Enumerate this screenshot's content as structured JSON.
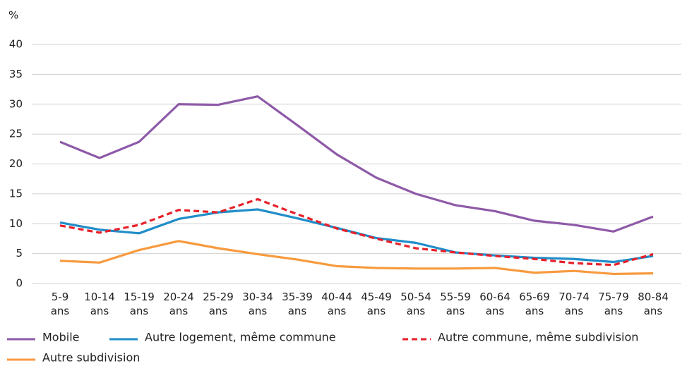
{
  "chart_data": {
    "type": "line",
    "y_label": "%",
    "categories": [
      "5-9 ans",
      "10-14 ans",
      "15-19 ans",
      "20-24 ans",
      "25-29 ans",
      "30-34 ans",
      "35-39 ans",
      "40-44 ans",
      "45-49 ans",
      "50-54 ans",
      "55-59 ans",
      "60-64 ans",
      "65-69 ans",
      "70-74 ans",
      "75-79 ans",
      "80-84 ans"
    ],
    "series": [
      {
        "name": "Mobile",
        "color": "#8e5aa8",
        "style": "solid",
        "values": [
          23.7,
          21,
          23.7,
          30,
          29.9,
          31.3,
          26.5,
          21.6,
          17.7,
          15,
          13.1,
          12.1,
          10.5,
          9.8,
          8.7,
          11.2
        ]
      },
      {
        "name": "Autre logement, même commune",
        "color": "#1f8dc9",
        "style": "solid",
        "values": [
          10.2,
          9,
          8.4,
          10.8,
          11.9,
          12.4,
          10.9,
          9.3,
          7.6,
          6.8,
          5.2,
          4.7,
          4.3,
          4.1,
          3.6,
          4.6
        ]
      },
      {
        "name": "Autre commune, même subdivision",
        "color": "#e8202a",
        "style": "dashed",
        "values": [
          9.7,
          8.5,
          9.8,
          12.3,
          11.9,
          14.1,
          11.6,
          9.2,
          7.5,
          5.9,
          5.2,
          4.6,
          4.1,
          3.4,
          3.1,
          4.9
        ]
      },
      {
        "name": "Autre subdivision",
        "color": "#f79a3e",
        "style": "solid",
        "values": [
          3.8,
          3.5,
          5.6,
          7.1,
          5.9,
          4.9,
          4.0,
          2.9,
          2.6,
          2.5,
          2.5,
          2.6,
          1.8,
          2.1,
          1.6,
          1.7
        ]
      }
    ],
    "ylim": [
      0,
      40
    ],
    "yticks": [
      0,
      5,
      10,
      15,
      20,
      25,
      30,
      35,
      40
    ],
    "grid": true
  }
}
